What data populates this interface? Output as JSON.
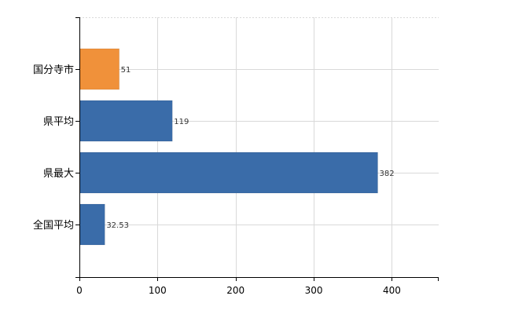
{
  "chart_data": {
    "type": "bar",
    "orientation": "horizontal",
    "title": "",
    "xlabel": "",
    "ylabel": "",
    "categories": [
      "国分寺市",
      "県平均",
      "県最大",
      "全国平均"
    ],
    "values": [
      51,
      119,
      382,
      32.53
    ],
    "value_labels": [
      "51",
      "119",
      "382",
      "32.53"
    ],
    "colors": [
      "#F0913A",
      "#3A6CA9",
      "#3A6CA9",
      "#3A6CA9"
    ],
    "xlim": [
      0,
      460
    ],
    "xticks": [
      0,
      100,
      200,
      300,
      400
    ],
    "xtick_labels": [
      "0",
      "100",
      "200",
      "300",
      "400"
    ],
    "grid": true,
    "gridline_color": "#d9d9d9",
    "axis_color": "#000000"
  }
}
